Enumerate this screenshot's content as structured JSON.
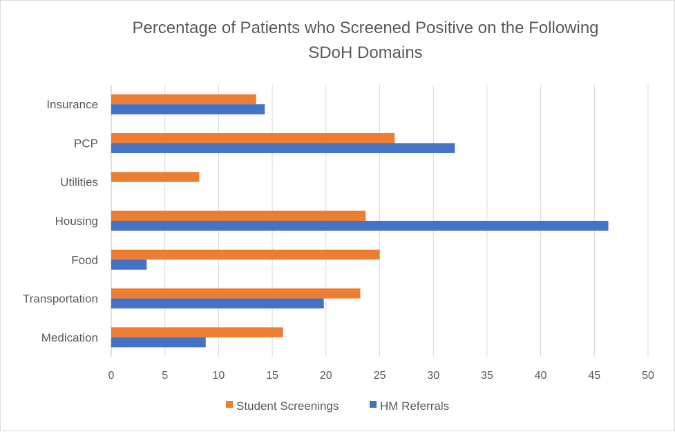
{
  "chart_data": {
    "type": "bar",
    "orientation": "horizontal",
    "title_lines": [
      "Percentage of Patients who Screened Positive on the Following",
      "SDoH Domains"
    ],
    "categories": [
      "Insurance",
      "PCP",
      "Utilities",
      "Housing",
      "Food",
      "Transportation",
      "Medication"
    ],
    "series": [
      {
        "name": "Student Screenings",
        "color": "#ED7D31",
        "values": [
          13.5,
          26.4,
          8.2,
          23.7,
          25.0,
          23.2,
          16.0
        ]
      },
      {
        "name": "HM Referrals",
        "color": "#4472C4",
        "values": [
          14.3,
          32.0,
          0,
          46.3,
          3.3,
          19.8,
          8.8
        ]
      }
    ],
    "xlim": [
      0,
      50
    ],
    "xticks": [
      0,
      5,
      10,
      15,
      20,
      25,
      30,
      35,
      40,
      45,
      50
    ],
    "grid": true,
    "legend": "bottom"
  }
}
